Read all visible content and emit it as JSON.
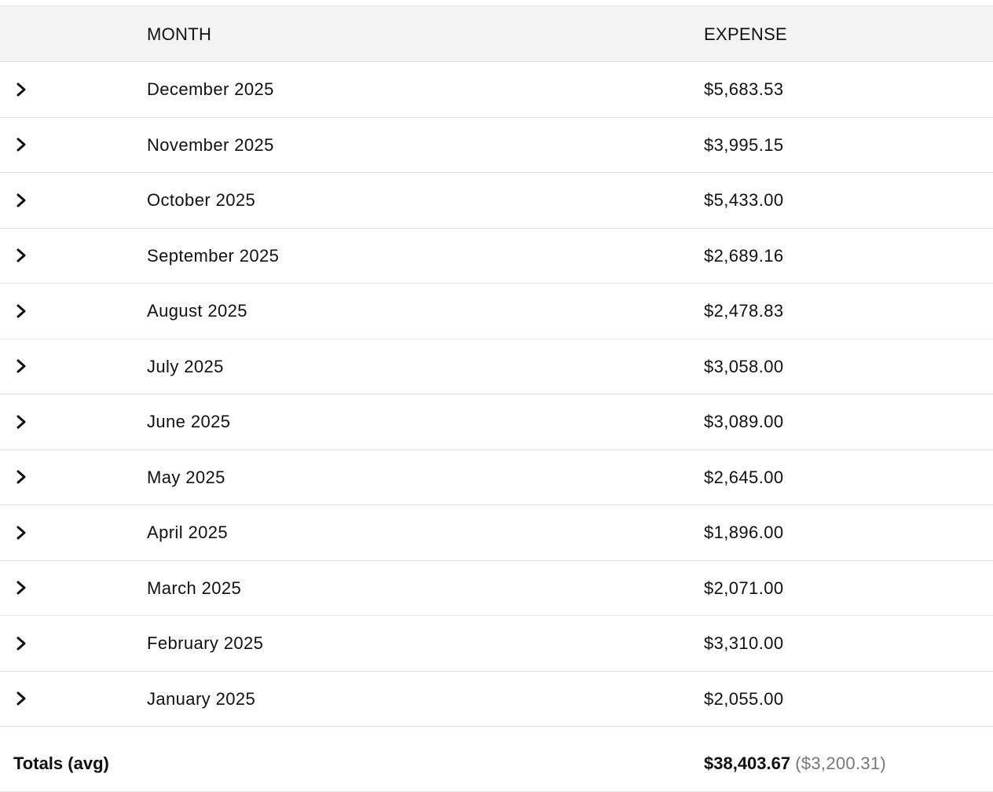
{
  "header": {
    "month_label": "MONTH",
    "expense_label": "EXPENSE"
  },
  "rows": [
    {
      "month": "December 2025",
      "expense": "$5,683.53",
      "icon": "chevron-right-icon"
    },
    {
      "month": "November 2025",
      "expense": "$3,995.15",
      "icon": "chevron-right-icon"
    },
    {
      "month": "October 2025",
      "expense": "$5,433.00",
      "icon": "chevron-right-icon"
    },
    {
      "month": "September 2025",
      "expense": "$2,689.16",
      "icon": "chevron-right-icon"
    },
    {
      "month": "August 2025",
      "expense": "$2,478.83",
      "icon": "chevron-right-icon"
    },
    {
      "month": "July 2025",
      "expense": "$3,058.00",
      "icon": "chevron-right-icon"
    },
    {
      "month": "June 2025",
      "expense": "$3,089.00",
      "icon": "chevron-right-icon"
    },
    {
      "month": "May 2025",
      "expense": "$2,645.00",
      "icon": "chevron-right-icon"
    },
    {
      "month": "April 2025",
      "expense": "$1,896.00",
      "icon": "chevron-right-icon"
    },
    {
      "month": "March 2025",
      "expense": "$2,071.00",
      "icon": "chevron-right-icon"
    },
    {
      "month": "February 2025",
      "expense": "$3,310.00",
      "icon": "chevron-right-icon"
    },
    {
      "month": "January 2025",
      "expense": "$2,055.00",
      "icon": "chevron-right-icon"
    }
  ],
  "totals": {
    "label": "Totals (avg)",
    "sum": "$38,403.67",
    "average": "($3,200.31)"
  },
  "colors": {
    "header_background": "#f3f3f3",
    "text": "#111111",
    "muted_text": "#777777",
    "divider": "#e3e3e3"
  }
}
